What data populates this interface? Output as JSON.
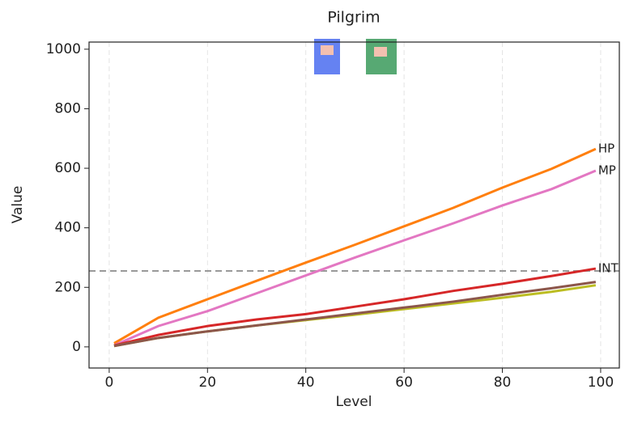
{
  "chart_data": {
    "type": "line",
    "title": "Pilgrim",
    "x_label": "Level",
    "y_label": "Value",
    "x": [
      1,
      10,
      20,
      30,
      40,
      50,
      60,
      70,
      80,
      90,
      99
    ],
    "series": [
      {
        "name": "HP",
        "color": "#ff7f0e",
        "values": [
          12,
          98,
          160,
          222,
          283,
          343,
          405,
          467,
          535,
          598,
          665
        ]
      },
      {
        "name": "MP",
        "color": "#e377c2",
        "values": [
          5,
          70,
          120,
          180,
          240,
          300,
          358,
          415,
          475,
          530,
          592
        ]
      },
      {
        "name": "INT",
        "color": "#d62728",
        "values": [
          5,
          40,
          70,
          92,
          110,
          135,
          160,
          188,
          212,
          238,
          263
        ]
      },
      {
        "color": "#bcbd22",
        "values": [
          3,
          30,
          52,
          72,
          90,
          108,
          127,
          146,
          165,
          185,
          207
        ]
      },
      {
        "color": "#8c564b",
        "values": [
          3,
          30,
          52,
          72,
          92,
          112,
          132,
          152,
          175,
          197,
          218
        ]
      }
    ],
    "hline": 255,
    "xlim": [
      -4.1,
      103.8
    ],
    "ylim": [
      -71,
      1024
    ],
    "xticks": [
      0,
      20,
      40,
      60,
      80,
      100
    ],
    "yticks": [
      0,
      200,
      400,
      600,
      800,
      1000
    ],
    "grid": "x"
  }
}
